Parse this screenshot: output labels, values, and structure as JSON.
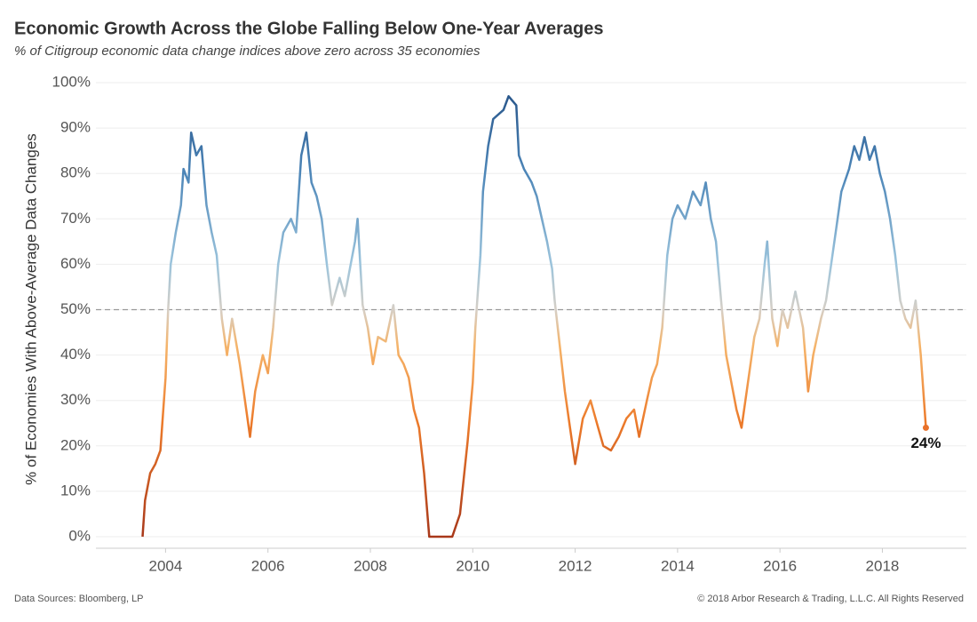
{
  "chart_data": {
    "type": "line",
    "title": "Economic Growth Across the Globe Falling Below One-Year Averages",
    "subtitle": "% of Citigroup economic data change indices above zero across 35 economies",
    "y_label": "% of Economies With Above-Average Data Changes",
    "source": "Data Sources: Bloomberg, LP",
    "copyright": "© 2018 Arbor Research & Trading, L.L.C. All Rights Reserved",
    "x": [
      2003.55,
      2003.6,
      2003.7,
      2003.8,
      2003.9,
      2004.0,
      2004.05,
      2004.1,
      2004.2,
      2004.3,
      2004.35,
      2004.45,
      2004.5,
      2004.6,
      2004.7,
      2004.8,
      2004.9,
      2005.0,
      2005.1,
      2005.2,
      2005.3,
      2005.45,
      2005.55,
      2005.65,
      2005.75,
      2005.9,
      2006.0,
      2006.1,
      2006.2,
      2006.3,
      2006.45,
      2006.55,
      2006.65,
      2006.75,
      2006.85,
      2006.95,
      2007.05,
      2007.15,
      2007.25,
      2007.4,
      2007.5,
      2007.6,
      2007.7,
      2007.75,
      2007.85,
      2007.95,
      2008.05,
      2008.15,
      2008.3,
      2008.45,
      2008.55,
      2008.65,
      2008.75,
      2008.85,
      2008.95,
      2009.05,
      2009.15,
      2009.4,
      2009.6,
      2009.75,
      2009.9,
      2010.0,
      2010.05,
      2010.15,
      2010.2,
      2010.3,
      2010.4,
      2010.6,
      2010.7,
      2010.85,
      2010.9,
      2011.0,
      2011.15,
      2011.25,
      2011.35,
      2011.45,
      2011.55,
      2011.6,
      2011.7,
      2011.8,
      2011.9,
      2012.0,
      2012.15,
      2012.3,
      2012.45,
      2012.55,
      2012.7,
      2012.85,
      2013.0,
      2013.15,
      2013.25,
      2013.4,
      2013.5,
      2013.6,
      2013.7,
      2013.8,
      2013.9,
      2014.0,
      2014.15,
      2014.3,
      2014.45,
      2014.55,
      2014.65,
      2014.75,
      2014.85,
      2014.95,
      2015.05,
      2015.15,
      2015.25,
      2015.35,
      2015.5,
      2015.6,
      2015.7,
      2015.75,
      2015.85,
      2015.95,
      2016.05,
      2016.15,
      2016.3,
      2016.45,
      2016.55,
      2016.65,
      2016.8,
      2016.9,
      2017.0,
      2017.1,
      2017.2,
      2017.35,
      2017.45,
      2017.55,
      2017.65,
      2017.75,
      2017.85,
      2017.95,
      2018.05,
      2018.15,
      2018.25,
      2018.35,
      2018.45,
      2018.55,
      2018.65,
      2018.75,
      2018.85
    ],
    "values": [
      0,
      8,
      14,
      16,
      19,
      35,
      50,
      60,
      67,
      73,
      81,
      78,
      89,
      84,
      86,
      73,
      67,
      62,
      48,
      40,
      48,
      38,
      30,
      22,
      32,
      40,
      36,
      46,
      60,
      67,
      70,
      67,
      84,
      89,
      78,
      75,
      70,
      60,
      51,
      57,
      53,
      59,
      65,
      70,
      51,
      46,
      38,
      44,
      43,
      51,
      40,
      38,
      35,
      28,
      24,
      14,
      0,
      0,
      0,
      5,
      21,
      34,
      46,
      62,
      76,
      86,
      92,
      94,
      97,
      95,
      84,
      81,
      78,
      75,
      70,
      65,
      59,
      52,
      42,
      32,
      24,
      16,
      26,
      30,
      24,
      20,
      19,
      22,
      26,
      28,
      22,
      30,
      35,
      38,
      46,
      62,
      70,
      73,
      70,
      76,
      73,
      78,
      70,
      65,
      52,
      40,
      34,
      28,
      24,
      32,
      44,
      48,
      60,
      65,
      48,
      42,
      50,
      46,
      54,
      46,
      32,
      40,
      48,
      52,
      60,
      68,
      76,
      81,
      86,
      83,
      88,
      83,
      86,
      80,
      76,
      70,
      62,
      52,
      48,
      46,
      52,
      40,
      24
    ],
    "color_scale": [
      {
        "value": 0,
        "color": "#a8381a"
      },
      {
        "value": 25,
        "color": "#ec7a2a"
      },
      {
        "value": 42,
        "color": "#f5b46a"
      },
      {
        "value": 50,
        "color": "#d6cfc6"
      },
      {
        "value": 60,
        "color": "#9cc4dc"
      },
      {
        "value": 80,
        "color": "#4d86b8"
      },
      {
        "value": 100,
        "color": "#245085"
      }
    ],
    "reference_line": 50,
    "annotations": [
      {
        "text": "24%",
        "x": 2018.85,
        "y": 24
      }
    ],
    "xlim": [
      2002.64,
      2019.64
    ],
    "xticks": [
      2004,
      2006,
      2008,
      2010,
      2012,
      2014,
      2016,
      2018
    ],
    "ylim": [
      0,
      100
    ],
    "yticks": [
      {
        "value": 0,
        "label": "0%"
      },
      {
        "value": 10,
        "label": "10%"
      },
      {
        "value": 20,
        "label": "20%"
      },
      {
        "value": 30,
        "label": "30%"
      },
      {
        "value": 40,
        "label": "40%"
      },
      {
        "value": 50,
        "label": "50%"
      },
      {
        "value": 60,
        "label": "60%"
      },
      {
        "value": 70,
        "label": "70%"
      },
      {
        "value": 80,
        "label": "80%"
      },
      {
        "value": 90,
        "label": "90%"
      },
      {
        "value": 100,
        "label": "100%"
      }
    ],
    "grid": true
  }
}
